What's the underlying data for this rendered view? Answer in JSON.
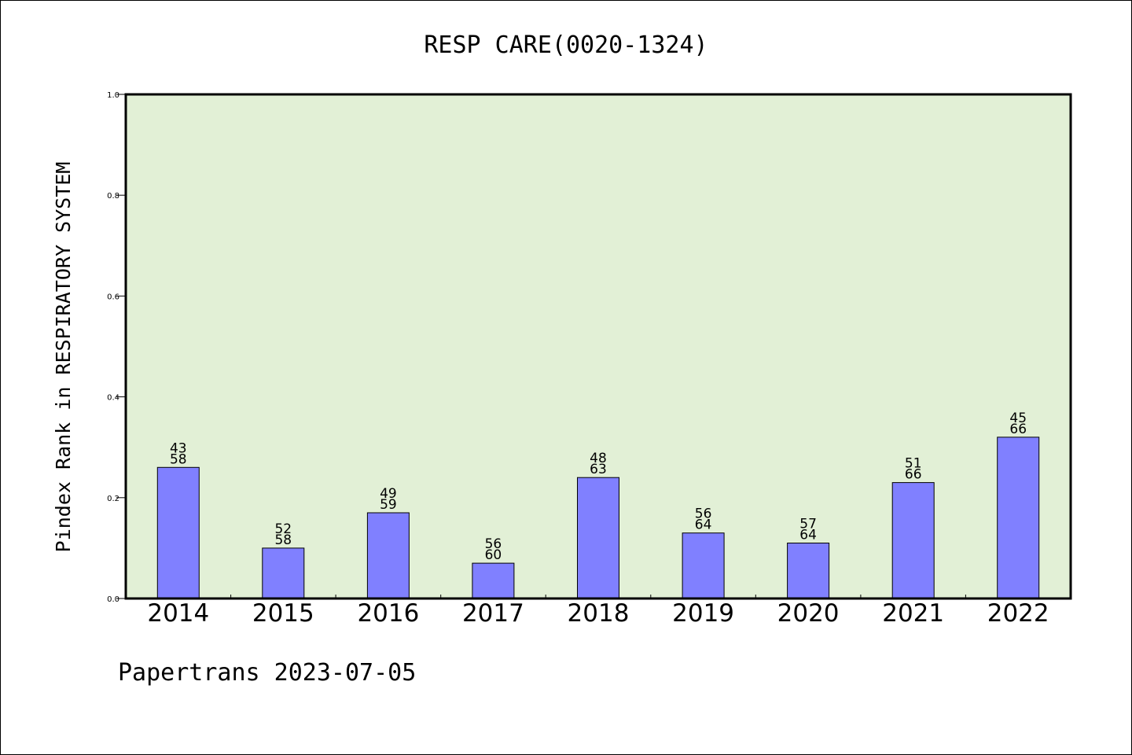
{
  "chart_data": {
    "type": "bar",
    "title": "RESP CARE(0020-1324)",
    "ylabel": "Pindex Rank in RESPIRATORY SYSTEM",
    "xlabel": "",
    "ylim": [
      0,
      1.0
    ],
    "yticks": [
      "0.0",
      "0.2",
      "0.4",
      "0.6",
      "0.8",
      "1.0"
    ],
    "categories": [
      "2014",
      "2015",
      "2016",
      "2017",
      "2018",
      "2019",
      "2020",
      "2021",
      "2022"
    ],
    "values": [
      0.26,
      0.1,
      0.17,
      0.07,
      0.24,
      0.13,
      0.11,
      0.23,
      0.32
    ],
    "labels_top": [
      "43",
      "52",
      "49",
      "56",
      "48",
      "56",
      "57",
      "51",
      "45"
    ],
    "labels_bottom": [
      "58",
      "58",
      "59",
      "60",
      "63",
      "64",
      "64",
      "66",
      "66"
    ],
    "grid": false,
    "legend": "none",
    "colors": {
      "bar": "#8080ff",
      "plot_background": "#e2f0d6",
      "axis": "#000000"
    }
  },
  "footer": {
    "text": "Papertrans 2023-07-05"
  }
}
